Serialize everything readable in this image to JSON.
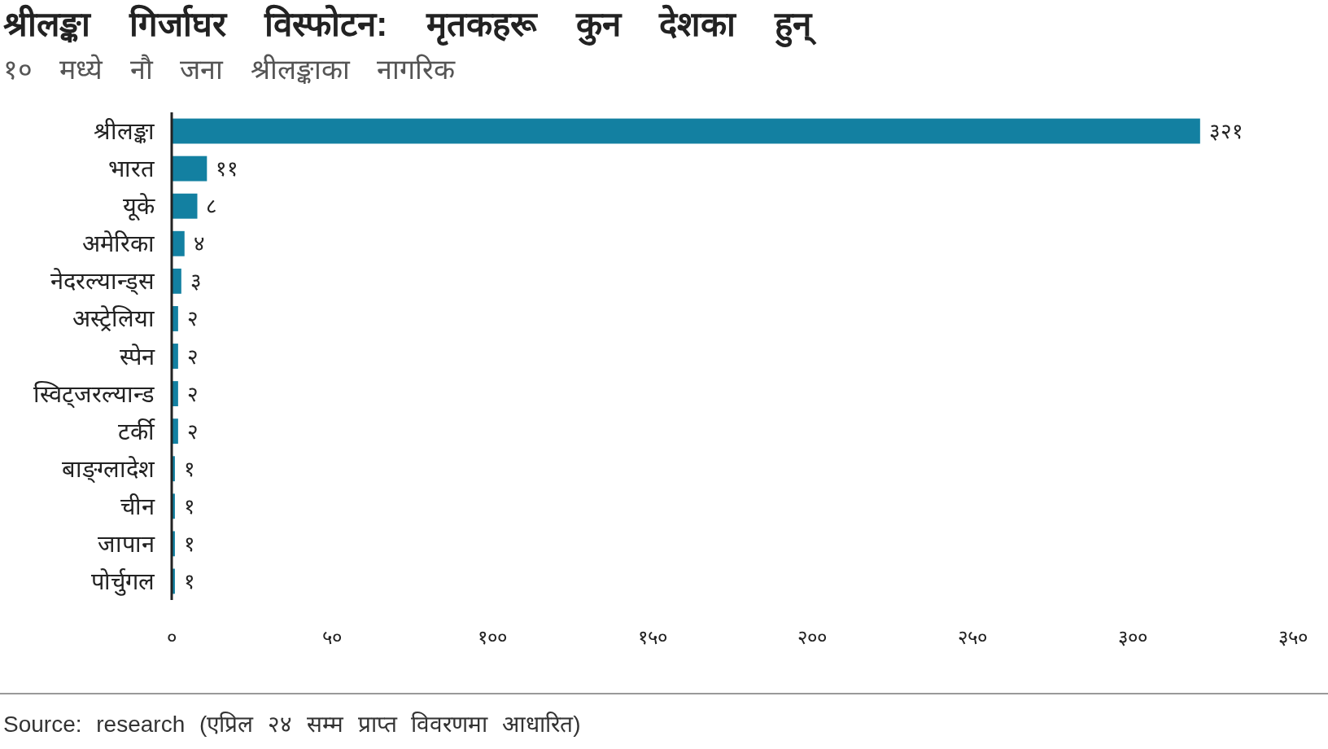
{
  "chart_data": {
    "type": "bar",
    "orientation": "horizontal",
    "title": "श्रीलङ्का गिर्जाघर विस्फोटन: मृतकहरू कुन देशका हुन्",
    "subtitle": "१० मध्ये नौ जना श्रीलङ्काका नागरिक",
    "categories": [
      "श्रीलङ्का",
      "भारत",
      "यूके",
      "अमेरिका",
      "नेदरल्यान्ड्स",
      "अस्ट्रेलिया",
      "स्पेन",
      "स्विट्जरल्यान्ड",
      "टर्की",
      "बाङ्ग्लादेश",
      "चीन",
      "जापान",
      "पोर्चुगल"
    ],
    "values": [
      321,
      11,
      8,
      4,
      3,
      2,
      2,
      2,
      2,
      1,
      1,
      1,
      1
    ],
    "value_labels": [
      "३२१",
      "११",
      "८",
      "४",
      "३",
      "२",
      "२",
      "२",
      "२",
      "१",
      "१",
      "१",
      "१"
    ],
    "color": "#1380a1",
    "xlim": [
      0,
      350
    ],
    "xticks": [
      {
        "value": 0,
        "label": "०"
      },
      {
        "value": 50,
        "label": "५०"
      },
      {
        "value": 100,
        "label": "१००"
      },
      {
        "value": 150,
        "label": "१५०"
      },
      {
        "value": 200,
        "label": "२००"
      },
      {
        "value": 250,
        "label": "२५०"
      },
      {
        "value": 300,
        "label": "३००"
      },
      {
        "value": 350,
        "label": "३५०"
      }
    ],
    "annotations": [
      "Source: research (एप्रिल २४ सम्म प्राप्त विवरणमा आधारित)"
    ]
  }
}
